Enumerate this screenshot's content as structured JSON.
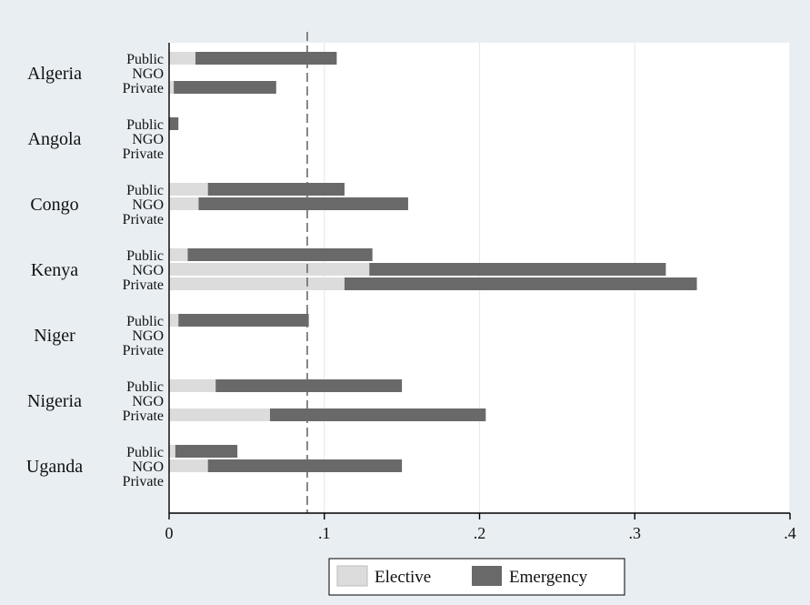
{
  "chart_data": {
    "type": "bar",
    "orientation": "horizontal",
    "stacked": true,
    "countries": [
      "Algeria",
      "Angola",
      "Congo",
      "Kenya",
      "Niger",
      "Nigeria",
      "Uganda"
    ],
    "groups": [
      "Public",
      "NGO",
      "Private"
    ],
    "series": [
      {
        "name": "Elective",
        "color": "#dcdcdc",
        "values": [
          [
            0.017,
            0,
            0.003
          ],
          [
            0,
            0,
            0
          ],
          [
            0.025,
            0.019,
            0
          ],
          [
            0.012,
            0.129,
            0.113
          ],
          [
            0.006,
            0,
            0
          ],
          [
            0.03,
            0,
            0.065
          ],
          [
            0.004,
            0.025,
            0
          ]
        ]
      },
      {
        "name": "Emergency",
        "color": "#696969",
        "values": [
          [
            0.091,
            0,
            0.066
          ],
          [
            0.006,
            0,
            0
          ],
          [
            0.088,
            0.135,
            0
          ],
          [
            0.119,
            0.191,
            0.227
          ],
          [
            0.084,
            0,
            0
          ],
          [
            0.12,
            0,
            0.139
          ],
          [
            0.04,
            0.125,
            0
          ]
        ]
      }
    ],
    "x_ticks": [
      "0",
      ".1",
      ".2",
      ".3",
      ".4"
    ],
    "x_tick_values": [
      0,
      0.1,
      0.2,
      0.3,
      0.4
    ],
    "xlim": [
      0,
      0.4
    ],
    "reference_line": 0.089,
    "grid": true,
    "legend_position": "bottom"
  }
}
